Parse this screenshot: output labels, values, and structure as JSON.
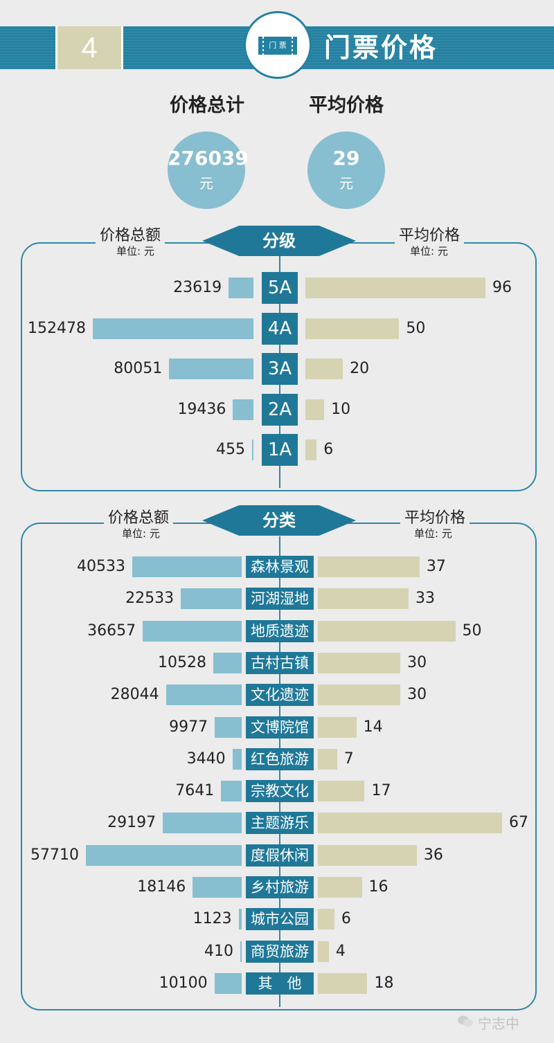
{
  "header": {
    "section_number": "4",
    "ticket_text": "门 票",
    "title": "门票价格"
  },
  "stats": {
    "total": {
      "label": "价格总计",
      "value": "276039",
      "unit": "元"
    },
    "average": {
      "label": "平均价格",
      "value": "29",
      "unit": "元"
    }
  },
  "watermark": "宁志中",
  "colors": {
    "primary": "#1f7898",
    "total_bar": "#87bed0",
    "avg_bar": "#d6d3b2",
    "background": "#ececec"
  },
  "chart_data": [
    {
      "type": "bar",
      "orientation": "horizontal-butterfly",
      "title": "分级",
      "left_label": "价格总额",
      "left_unit": "单位: 元",
      "right_label": "平均价格",
      "right_unit": "单位: 元",
      "categories": [
        "5A",
        "4A",
        "3A",
        "2A",
        "1A"
      ],
      "series": [
        {
          "name": "价格总额",
          "values": [
            23619,
            152478,
            80051,
            19436,
            455
          ]
        },
        {
          "name": "平均价格",
          "values": [
            96,
            50,
            20,
            10,
            6
          ]
        }
      ]
    },
    {
      "type": "bar",
      "orientation": "horizontal-butterfly",
      "title": "分类",
      "left_label": "价格总额",
      "left_unit": "单位: 元",
      "right_label": "平均价格",
      "right_unit": "单位: 元",
      "categories": [
        "森林景观",
        "河湖湿地",
        "地质遗迹",
        "古村古镇",
        "文化遗迹",
        "文博院馆",
        "红色旅游",
        "宗教文化",
        "主题游乐",
        "度假休闲",
        "乡村旅游",
        "城市公园",
        "商贸旅游",
        "其　他"
      ],
      "series": [
        {
          "name": "价格总额",
          "values": [
            40533,
            22533,
            36657,
            10528,
            28044,
            9977,
            3440,
            7641,
            29197,
            57710,
            18146,
            1123,
            410,
            10100
          ]
        },
        {
          "name": "平均价格",
          "values": [
            37,
            33,
            50,
            30,
            30,
            14,
            7,
            17,
            67,
            36,
            16,
            6,
            4,
            18
          ]
        }
      ]
    }
  ]
}
